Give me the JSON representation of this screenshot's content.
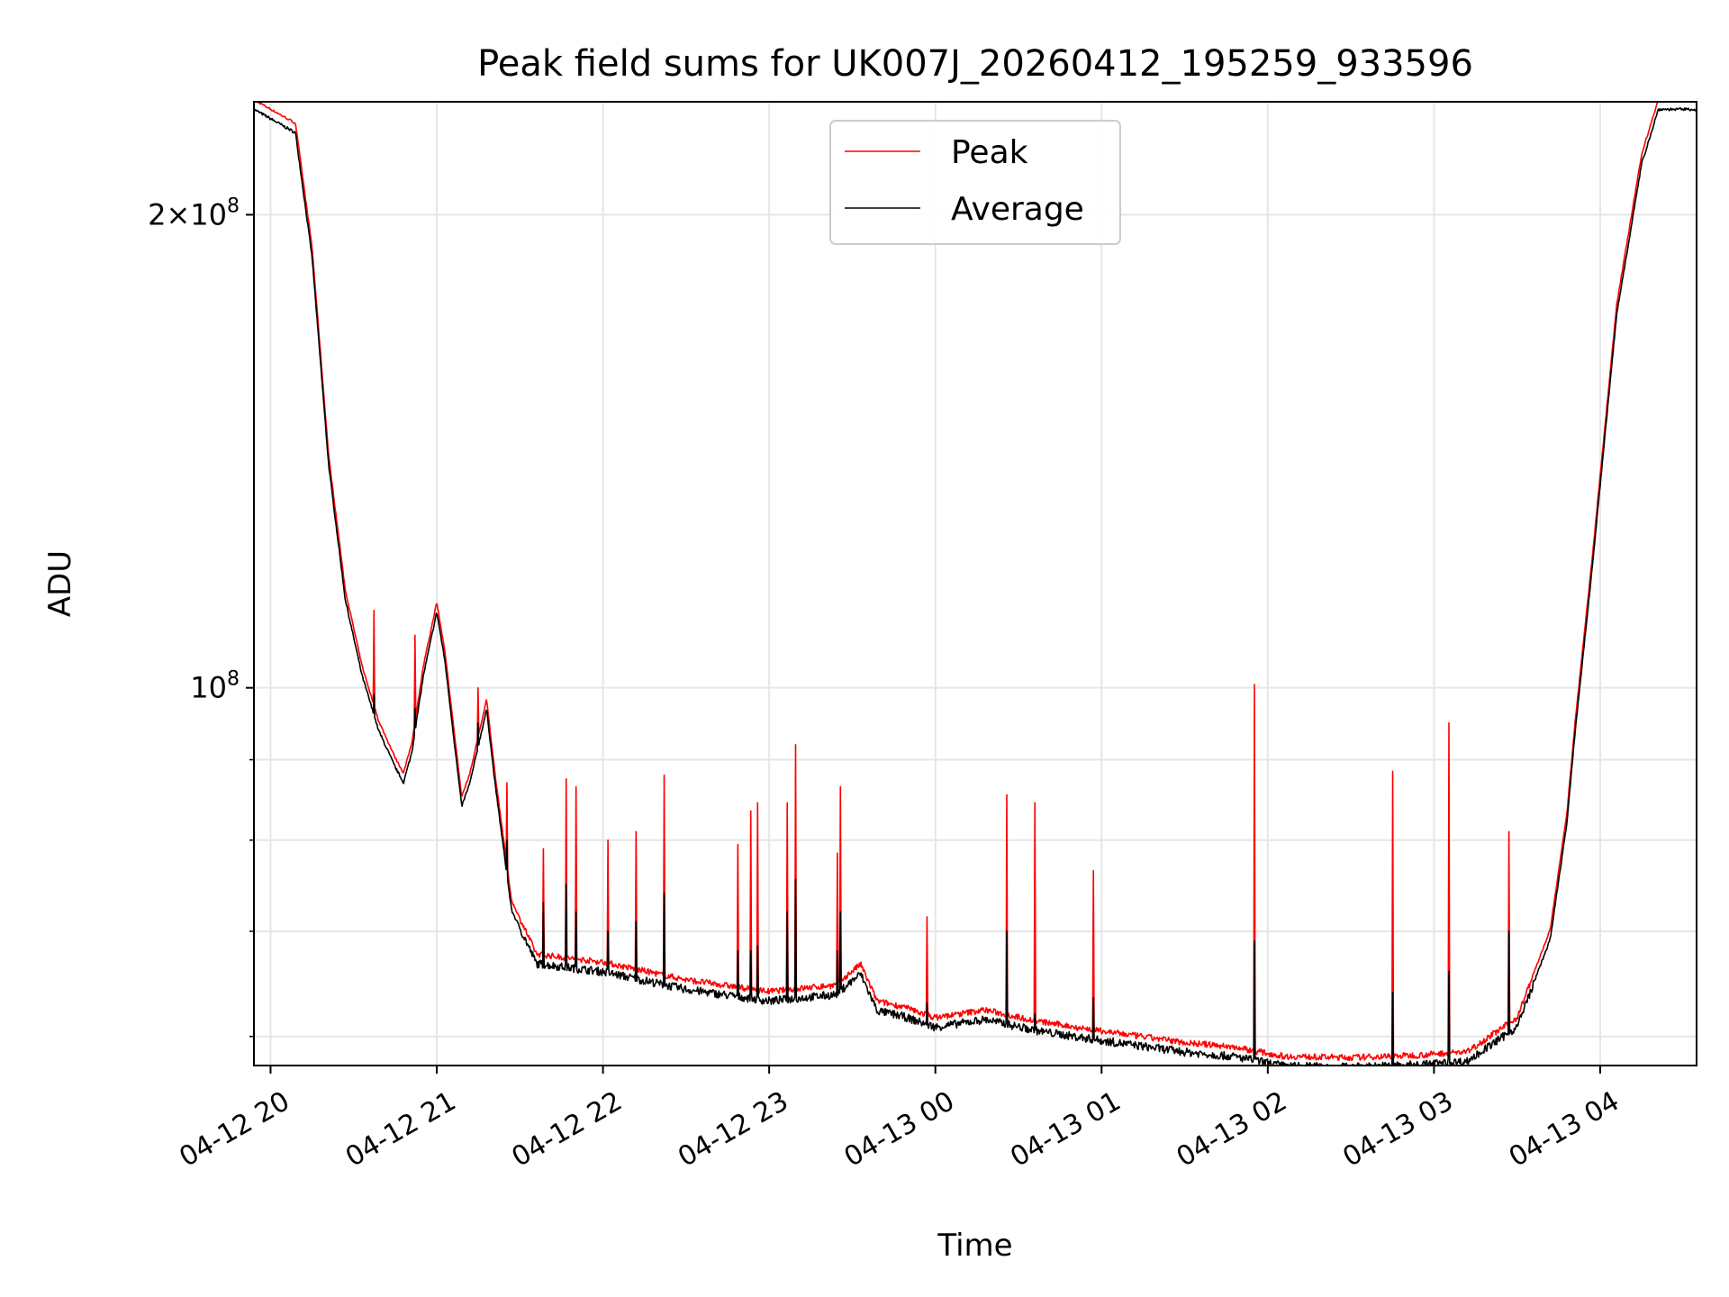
{
  "chart_data": {
    "type": "line",
    "title": "Peak field sums for UK007J_20260412_195259_933596",
    "xlabel": "Time",
    "ylabel": "ADU",
    "yscale": "log",
    "grid": true,
    "legend_position": "top-center",
    "x_units": "hours since 04-12 20:00",
    "xlim": [
      -0.1,
      8.58
    ],
    "ylim": [
      57500000,
      236000000
    ],
    "x_ticks": [
      0,
      1,
      2,
      3,
      4,
      5,
      6,
      7,
      8
    ],
    "x_tick_labels": [
      "04-12 20",
      "04-12 21",
      "04-12 22",
      "04-12 23",
      "04-13 00",
      "04-13 01",
      "04-13 02",
      "04-13 03",
      "04-13 04"
    ],
    "y_major_ticks": [
      {
        "value": 100000000,
        "label": "10^8"
      },
      {
        "value": 200000000,
        "label": "2×10^8"
      }
    ],
    "y_minor_ticks": [
      60000000,
      70000000,
      80000000,
      90000000
    ],
    "series": [
      {
        "name": "Peak",
        "color": "#ff0000"
      },
      {
        "name": "Average",
        "color": "#000000"
      }
    ],
    "baseline": {
      "x": [
        -0.1,
        0.15,
        0.25,
        0.35,
        0.45,
        0.55,
        0.65,
        0.75,
        0.8,
        0.85,
        0.92,
        1.0,
        1.05,
        1.15,
        1.2,
        1.3,
        1.35,
        1.45,
        1.6,
        2.0,
        2.5,
        3.0,
        3.4,
        3.55,
        3.65,
        3.8,
        4.0,
        4.3,
        4.6,
        5.0,
        5.5,
        5.8,
        6.1,
        6.5,
        6.9,
        7.2,
        7.5,
        7.7,
        7.8,
        7.85,
        7.95,
        8.1,
        8.25,
        8.35,
        8.58
      ],
      "y": [
        236000000,
        228000000,
        190000000,
        140000000,
        115000000,
        103000000,
        95000000,
        90000000,
        88000000,
        92000000,
        103000000,
        113000000,
        105000000,
        85000000,
        88000000,
        98000000,
        88000000,
        73000000,
        67500000,
        66700000,
        65000000,
        63900000,
        64500000,
        66500000,
        63000000,
        62500000,
        61500000,
        62200000,
        61200000,
        60300000,
        59300000,
        58900000,
        58100000,
        58000000,
        58200000,
        58500000,
        61500000,
        70000000,
        83000000,
        95000000,
        120000000,
        175000000,
        218000000,
        236000000,
        236000000
      ]
    },
    "spikes": [
      {
        "x": 0.62,
        "peak": 112000000,
        "average": 99000000
      },
      {
        "x": 0.87,
        "peak": 108000000,
        "average": 97000000
      },
      {
        "x": 1.25,
        "peak": 100000000,
        "average": 95000000
      },
      {
        "x": 1.42,
        "peak": 87000000,
        "average": 80000000
      },
      {
        "x": 1.64,
        "peak": 79000000,
        "average": 73000000
      },
      {
        "x": 1.78,
        "peak": 87500000,
        "average": 75000000
      },
      {
        "x": 1.84,
        "peak": 86500000,
        "average": 72000000
      },
      {
        "x": 2.03,
        "peak": 80000000,
        "average": 70000000
      },
      {
        "x": 2.2,
        "peak": 81000000,
        "average": 71000000
      },
      {
        "x": 2.37,
        "peak": 88000000,
        "average": 74000000
      },
      {
        "x": 2.81,
        "peak": 79500000,
        "average": 68000000
      },
      {
        "x": 2.89,
        "peak": 83500000,
        "average": 68000000
      },
      {
        "x": 2.93,
        "peak": 84500000,
        "average": 68500000
      },
      {
        "x": 3.11,
        "peak": 84500000,
        "average": 72000000
      },
      {
        "x": 3.16,
        "peak": 92000000,
        "average": 75500000
      },
      {
        "x": 3.41,
        "peak": 78500000,
        "average": 68000000
      },
      {
        "x": 3.43,
        "peak": 86500000,
        "average": 72000000
      },
      {
        "x": 3.95,
        "peak": 71500000,
        "average": 63000000
      },
      {
        "x": 4.43,
        "peak": 85500000,
        "average": 70000000
      },
      {
        "x": 4.6,
        "peak": 84500000,
        "average": 62000000
      },
      {
        "x": 4.95,
        "peak": 76500000,
        "average": 63500000
      },
      {
        "x": 5.92,
        "peak": 100500000,
        "average": 69000000
      },
      {
        "x": 6.75,
        "peak": 88500000,
        "average": 64000000
      },
      {
        "x": 7.09,
        "peak": 95000000,
        "average": 66000000
      },
      {
        "x": 7.45,
        "peak": 81000000,
        "average": 70000000
      }
    ]
  }
}
